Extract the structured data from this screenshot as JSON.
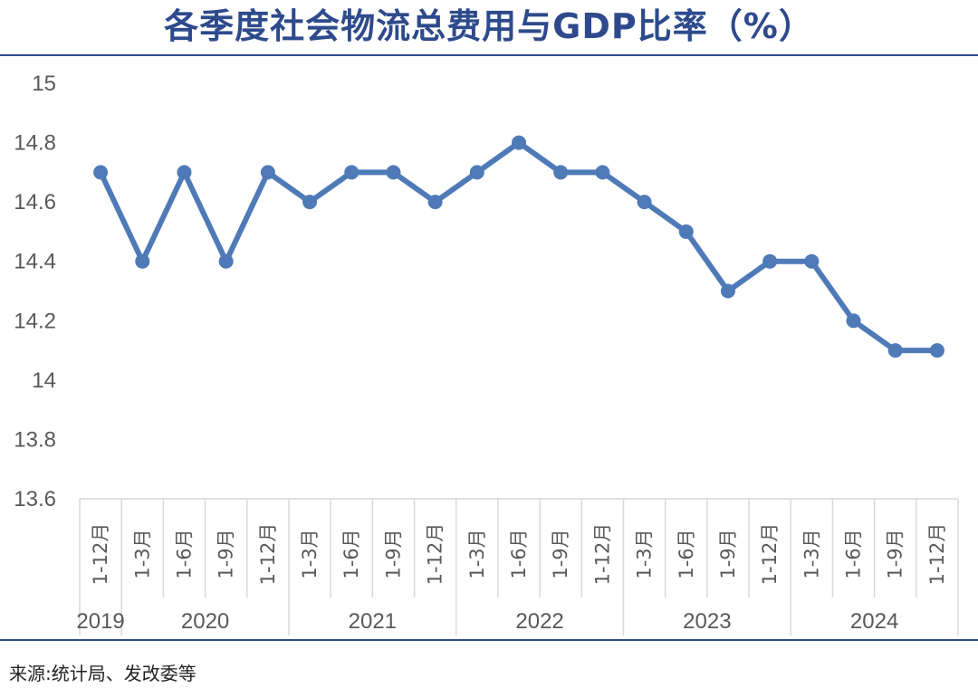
{
  "title": "各季度社会物流总费用与GDP比率（%）",
  "source": "来源:统计局、发改委等",
  "colors": {
    "line": "#4f7ab8",
    "title": "#2e4a8c",
    "axis_text": "#595959",
    "grid": "#d9d9d9"
  },
  "chart_data": {
    "type": "line",
    "title": "各季度社会物流总费用与GDP比率（%）",
    "xlabel": "",
    "ylabel": "",
    "ylim": [
      13.6,
      15
    ],
    "yticks": [
      "15",
      "14.8",
      "14.6",
      "14.4",
      "14.2",
      "14",
      "13.8",
      "13.6"
    ],
    "grid": false,
    "categories": [
      "1-12月",
      "1-3月",
      "1-6月",
      "1-9月",
      "1-12月",
      "1-3月",
      "1-6月",
      "1-9月",
      "1-12月",
      "1-3月",
      "1-6月",
      "1-9月",
      "1-12月",
      "1-3月",
      "1-6月",
      "1-9月",
      "1-12月",
      "1-3月",
      "1-6月",
      "1-9月",
      "1-12月"
    ],
    "groups": [
      {
        "label": "2019",
        "count": 1
      },
      {
        "label": "2020",
        "count": 4
      },
      {
        "label": "2021",
        "count": 4
      },
      {
        "label": "2022",
        "count": 4
      },
      {
        "label": "2023",
        "count": 4
      },
      {
        "label": "2024",
        "count": 4
      }
    ],
    "series": [
      {
        "values": [
          14.7,
          14.4,
          14.7,
          14.4,
          14.7,
          14.6,
          14.7,
          14.7,
          14.6,
          14.7,
          14.8,
          14.7,
          14.7,
          14.6,
          14.5,
          14.3,
          14.4,
          14.4,
          14.2,
          14.1,
          14.1
        ]
      }
    ]
  }
}
